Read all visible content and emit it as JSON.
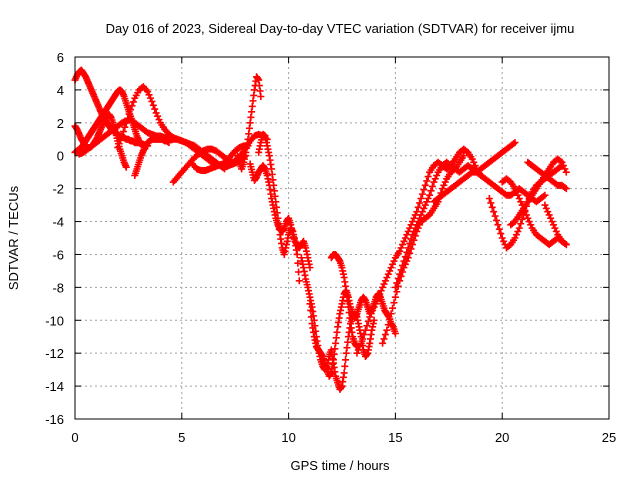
{
  "chart_data": {
    "type": "scatter",
    "title": "Day 016 of 2023, Sidereal Day-to-day VTEC variation (SDTVAR) for receiver ijmu",
    "xlabel": "GPS time / hours",
    "ylabel": "SDTVAR / TECUs",
    "xlim": [
      0,
      25
    ],
    "ylim": [
      -16,
      6
    ],
    "x_ticks": [
      "0",
      "5",
      "10",
      "15",
      "20",
      "25"
    ],
    "y_ticks": [
      "-16",
      "-14",
      "-12",
      "-10",
      "-8",
      "-6",
      "-4",
      "-2",
      "0",
      "2",
      "4",
      "6"
    ],
    "grid": true,
    "marker": "plus",
    "marker_color": "#ff0000",
    "series": [
      {
        "x": [
          0.0,
          0.1,
          0.2,
          0.3,
          0.4,
          0.5,
          0.6,
          0.7,
          0.8,
          0.9,
          1.0,
          1.1,
          1.2,
          1.3,
          1.4,
          1.5,
          1.6,
          1.7,
          1.8,
          1.9,
          2.0,
          2.1,
          2.2,
          2.3,
          2.4,
          2.5,
          2.6,
          2.7,
          2.8,
          2.9,
          3.0,
          3.1,
          3.2,
          3.3,
          3.4
        ],
        "y": [
          4.6,
          4.9,
          5.1,
          5.2,
          5.0,
          4.8,
          4.5,
          4.2,
          3.9,
          3.6,
          3.3,
          3.0,
          2.7,
          2.4,
          2.2,
          2.0,
          1.8,
          1.6,
          1.5,
          1.4,
          1.3,
          1.2,
          1.1,
          1.1,
          1.0,
          1.0,
          0.9,
          0.9,
          0.8,
          0.8,
          0.8,
          0.7,
          0.7,
          0.6,
          0.6
        ]
      },
      {
        "x": [
          0.0,
          0.1,
          0.2,
          0.3,
          0.4,
          0.5,
          0.6,
          0.7,
          0.8,
          0.9,
          1.0,
          1.1,
          1.2,
          1.3,
          1.4,
          1.5,
          1.6,
          1.7,
          1.8,
          1.9,
          2.0,
          2.1,
          2.2,
          2.3,
          2.4,
          2.5,
          2.6,
          2.7,
          2.8,
          2.9,
          3.0
        ],
        "y": [
          0.2,
          0.3,
          0.4,
          0.5,
          0.7,
          0.9,
          1.1,
          1.3,
          1.5,
          1.7,
          1.9,
          2.1,
          2.3,
          2.5,
          2.7,
          2.9,
          3.1,
          3.3,
          3.5,
          3.7,
          3.9,
          4.0,
          3.9,
          3.6,
          3.2,
          2.8,
          2.4,
          2.0,
          1.6,
          1.2,
          0.9
        ]
      },
      {
        "x": [
          0.0,
          0.1,
          0.2,
          0.3,
          0.4,
          0.5,
          0.6,
          0.7,
          0.8,
          0.9,
          1.0,
          1.1,
          1.2,
          1.3,
          1.4,
          1.5,
          1.6,
          1.7,
          1.8,
          1.9,
          2.0,
          2.1,
          2.2,
          2.3,
          2.4
        ],
        "y": [
          1.8,
          1.6,
          1.3,
          1.0,
          0.8,
          0.6,
          0.5,
          0.5,
          0.6,
          0.8,
          1.0,
          1.3,
          1.6,
          1.9,
          2.2,
          2.4,
          2.5,
          2.3,
          1.9,
          1.4,
          0.9,
          0.4,
          0.0,
          -0.4,
          -0.7
        ]
      },
      {
        "x": [
          0.2,
          0.4,
          0.6,
          0.8,
          1.0,
          1.2,
          1.4,
          1.6,
          1.8,
          2.0,
          2.2,
          2.4,
          2.6,
          2.8,
          3.0,
          3.2,
          3.4,
          3.6,
          3.8,
          4.0,
          4.2,
          4.4,
          4.6,
          4.8,
          5.0,
          5.2,
          5.4,
          5.6,
          5.8,
          6.0,
          6.2,
          6.4,
          6.6,
          6.8,
          7.0,
          7.2,
          7.4,
          7.6,
          7.8,
          8.0
        ],
        "y": [
          0.1,
          0.2,
          0.4,
          0.6,
          0.8,
          1.0,
          1.2,
          1.4,
          1.6,
          1.8,
          2.0,
          2.1,
          2.2,
          2.0,
          1.8,
          1.6,
          1.4,
          1.3,
          1.2,
          1.2,
          1.1,
          1.1,
          1.0,
          1.0,
          0.9,
          0.8,
          0.6,
          0.4,
          0.2,
          0.0,
          -0.2,
          -0.4,
          -0.5,
          -0.6,
          -0.7,
          -0.6,
          -0.5,
          -0.4,
          -0.2,
          0.0
        ]
      },
      {
        "x": [
          2.0,
          2.2,
          2.4,
          2.6,
          2.8,
          3.0,
          3.2,
          3.4,
          3.6,
          3.8,
          4.0,
          4.2,
          4.4,
          4.6,
          4.8,
          5.0,
          5.2,
          5.4,
          5.6,
          5.8,
          6.0,
          6.2,
          6.4,
          6.6,
          6.8,
          7.0
        ],
        "y": [
          0.5,
          1.2,
          2.0,
          2.8,
          3.5,
          4.0,
          4.2,
          3.9,
          3.3,
          2.6,
          2.0,
          1.6,
          1.3,
          1.1,
          1.0,
          0.9,
          0.8,
          0.7,
          0.6,
          0.4,
          0.2,
          0.0,
          -0.2,
          -0.4,
          -0.6,
          -0.8
        ]
      },
      {
        "x": [
          2.8,
          2.9,
          3.0,
          3.1,
          3.2,
          3.3,
          3.4,
          3.5,
          3.6,
          3.7,
          3.8,
          3.9,
          4.0,
          4.1,
          4.2,
          4.3,
          4.4
        ],
        "y": [
          -1.2,
          -0.8,
          -0.4,
          0.0,
          0.3,
          0.6,
          0.8,
          0.9,
          1.0,
          1.0,
          1.0,
          1.0,
          1.0,
          1.0,
          0.9,
          0.9,
          0.8
        ]
      },
      {
        "x": [
          4.6,
          4.8,
          5.0,
          5.2,
          5.4,
          5.6,
          5.8,
          6.0,
          6.2,
          6.4,
          6.6,
          6.8,
          7.0,
          7.2,
          7.4,
          7.6,
          7.8,
          8.0,
          8.2,
          8.4,
          8.6,
          8.8,
          9.0
        ],
        "y": [
          -1.6,
          -1.3,
          -1.0,
          -0.7,
          -0.4,
          -0.1,
          0.1,
          0.3,
          0.4,
          0.4,
          0.3,
          0.1,
          -0.1,
          -0.3,
          -0.4,
          -0.2,
          0.1,
          0.5,
          0.9,
          1.2,
          1.3,
          1.2,
          1.0
        ]
      },
      {
        "x": [
          5.5,
          5.7,
          5.9,
          6.1,
          6.3,
          6.5,
          6.7,
          6.9,
          7.1,
          7.3,
          7.5,
          7.7,
          7.9,
          8.1
        ],
        "y": [
          -0.5,
          -0.8,
          -0.9,
          -0.9,
          -0.8,
          -0.7,
          -0.6,
          -0.5,
          -0.3,
          0.0,
          0.3,
          0.5,
          0.6,
          0.6
        ]
      },
      {
        "x": [
          7.6,
          7.7,
          7.8,
          7.9,
          8.0,
          8.1,
          8.2,
          8.3,
          8.4,
          8.5,
          8.6,
          8.7
        ],
        "y": [
          0.0,
          -0.4,
          -0.8,
          -0.4,
          0.2,
          1.0,
          2.0,
          3.0,
          4.0,
          4.8,
          4.6,
          3.6
        ]
      },
      {
        "x": [
          8.2,
          8.3,
          8.4,
          8.5,
          8.6,
          8.7,
          8.8,
          8.9,
          9.0,
          9.1,
          9.2,
          9.3,
          9.4,
          9.5,
          9.6,
          9.7,
          9.8,
          9.9,
          10.0,
          10.1,
          10.2,
          10.3,
          10.4,
          10.5,
          10.6,
          10.7,
          10.8,
          10.9,
          11.0
        ],
        "y": [
          -0.5,
          -1.0,
          -1.5,
          -1.3,
          -1.0,
          -0.8,
          -0.6,
          -0.8,
          -1.2,
          -1.8,
          -2.6,
          -3.2,
          -3.8,
          -4.2,
          -4.5,
          -4.6,
          -4.4,
          -4.0,
          -3.8,
          -4.2,
          -4.8,
          -5.2,
          -5.4,
          -5.6,
          -5.4,
          -5.2,
          -5.6,
          -6.2,
          -6.8
        ]
      },
      {
        "x": [
          8.6,
          8.7,
          8.8,
          8.9,
          9.0,
          9.1,
          9.2,
          9.3,
          9.4,
          9.5,
          9.6,
          9.7,
          9.8,
          9.9,
          10.0,
          10.1,
          10.2,
          10.3,
          10.4,
          10.5
        ],
        "y": [
          0.2,
          0.8,
          1.3,
          1.2,
          0.6,
          0.0,
          -0.8,
          -1.8,
          -2.8,
          -3.8,
          -4.8,
          -5.6,
          -6.0,
          -5.4,
          -4.8,
          -4.4,
          -4.6,
          -5.2,
          -6.0,
          -7.6
        ]
      },
      {
        "x": [
          10.6,
          10.7,
          10.8,
          10.9,
          11.0,
          11.1,
          11.2,
          11.3,
          11.4,
          11.5,
          11.6,
          11.7,
          11.8,
          11.9,
          12.0,
          12.1,
          12.2,
          12.3,
          12.4,
          12.5,
          12.6,
          12.7,
          12.8,
          12.9,
          13.0,
          13.1,
          13.2,
          13.3,
          13.4,
          13.5,
          13.6,
          13.7,
          13.8,
          13.9,
          14.0
        ],
        "y": [
          -6.2,
          -6.8,
          -7.5,
          -8.0,
          -8.6,
          -9.2,
          -10.0,
          -11.0,
          -11.8,
          -12.4,
          -12.8,
          -13.0,
          -12.8,
          -12.2,
          -11.8,
          -12.6,
          -13.4,
          -13.8,
          -14.2,
          -14.0,
          -13.2,
          -12.0,
          -11.0,
          -10.2,
          -9.8,
          -9.6,
          -9.8,
          -10.4,
          -11.0,
          -11.8,
          -12.2,
          -12.0,
          -11.4,
          -10.6,
          -10.0
        ]
      },
      {
        "x": [
          11.0,
          11.1,
          11.2,
          11.3,
          11.4,
          11.5,
          11.6,
          11.7,
          11.8,
          11.9,
          12.0,
          12.1,
          12.2,
          12.3,
          12.4,
          12.5,
          12.6,
          12.7,
          12.8,
          12.9,
          13.0,
          13.1,
          13.2,
          13.3,
          13.4,
          13.5,
          13.6,
          13.7,
          13.8,
          13.9,
          14.0,
          14.1,
          14.2,
          14.3,
          14.4,
          14.5,
          14.6,
          14.7,
          14.8,
          14.9,
          15.0
        ],
        "y": [
          -9.0,
          -10.2,
          -11.0,
          -11.6,
          -11.8,
          -12.0,
          -12.2,
          -12.6,
          -13.0,
          -13.4,
          -13.2,
          -12.4,
          -11.4,
          -10.4,
          -9.6,
          -9.0,
          -8.4,
          -8.2,
          -8.6,
          -9.2,
          -9.6,
          -9.8,
          -9.6,
          -9.2,
          -8.8,
          -8.6,
          -8.8,
          -9.2,
          -9.6,
          -9.4,
          -9.0,
          -8.6,
          -8.4,
          -8.6,
          -9.0,
          -9.4,
          -9.6,
          -9.8,
          -10.2,
          -10.4,
          -10.8
        ]
      },
      {
        "x": [
          12.0,
          12.1,
          12.2,
          12.3,
          12.4,
          12.5,
          12.6,
          12.7,
          12.8,
          12.9,
          13.0,
          13.1,
          13.2
        ],
        "y": [
          -6.2,
          -6.0,
          -6.0,
          -6.2,
          -6.4,
          -6.8,
          -7.4,
          -8.2,
          -9.2,
          -10.2,
          -11.0,
          -11.4,
          -11.6
        ]
      },
      {
        "x": [
          13.2,
          13.4,
          13.6,
          13.8,
          14.0,
          14.2,
          14.4,
          14.6,
          14.8,
          15.0,
          15.2,
          15.4,
          15.6,
          15.8,
          16.0,
          16.2,
          16.4,
          16.6,
          16.8,
          17.0,
          17.2,
          17.4,
          17.6,
          17.8,
          18.0,
          18.2,
          18.4,
          18.6,
          18.8,
          19.0
        ],
        "y": [
          -12.0,
          -11.4,
          -10.6,
          -9.8,
          -9.2,
          -8.6,
          -8.0,
          -7.4,
          -6.8,
          -6.2,
          -5.8,
          -5.2,
          -4.6,
          -4.0,
          -3.4,
          -2.6,
          -1.8,
          -1.0,
          -0.6,
          -0.4,
          -0.6,
          -0.8,
          -0.6,
          -0.2,
          0.2,
          0.4,
          0.2,
          -0.2,
          -0.8,
          -1.2
        ]
      },
      {
        "x": [
          14.4,
          14.6,
          14.8,
          15.0,
          15.2,
          15.4,
          15.6,
          15.8,
          16.0,
          16.2,
          16.4,
          16.6,
          16.8,
          17.0,
          17.2,
          17.4,
          17.6,
          17.8,
          18.0,
          18.2
        ],
        "y": [
          -11.4,
          -10.6,
          -9.6,
          -8.6,
          -7.6,
          -6.8,
          -6.2,
          -5.4,
          -4.6,
          -4.0,
          -3.8,
          -3.6,
          -3.2,
          -2.8,
          -2.0,
          -1.4,
          -1.0,
          -0.8,
          -0.4,
          0.0
        ]
      },
      {
        "x": [
          15.0,
          15.2,
          15.4,
          15.6,
          15.8,
          16.0,
          16.2,
          16.4,
          16.6,
          16.8,
          17.0,
          17.2,
          17.4,
          17.6,
          17.8,
          18.0,
          18.2,
          18.4,
          18.6,
          18.8,
          19.0,
          19.2,
          19.4,
          19.6,
          19.8,
          20.0,
          20.2,
          20.4,
          20.6
        ],
        "y": [
          -8.0,
          -7.2,
          -6.4,
          -5.6,
          -4.8,
          -4.2,
          -3.6,
          -3.0,
          -2.4,
          -1.6,
          -1.0,
          -0.6,
          -0.4,
          -0.6,
          -0.8,
          -1.0,
          -0.8,
          -0.6,
          -0.8,
          -1.0,
          -0.8,
          -0.6,
          -0.4,
          -0.2,
          0.0,
          0.2,
          0.4,
          0.6,
          0.8
        ]
      },
      {
        "x": [
          16.8,
          17.0,
          17.2,
          17.4,
          17.6,
          17.8,
          18.0,
          18.2,
          18.4,
          18.6,
          18.8,
          19.0,
          19.2,
          19.4,
          19.6,
          19.8,
          20.0,
          20.2,
          20.4,
          20.6,
          20.8,
          21.0,
          21.2,
          21.4,
          21.6,
          21.8,
          22.0
        ],
        "y": [
          -2.8,
          -2.6,
          -2.4,
          -2.2,
          -2.0,
          -1.8,
          -1.6,
          -1.4,
          -1.2,
          -1.0,
          -1.0,
          -1.2,
          -1.4,
          -1.6,
          -1.8,
          -2.0,
          -2.2,
          -2.4,
          -2.4,
          -2.2,
          -2.0,
          -2.2,
          -2.4,
          -2.6,
          -2.8,
          -2.6,
          -2.4
        ]
      },
      {
        "x": [
          19.4,
          19.6,
          19.8,
          20.0,
          20.2,
          20.4,
          20.6,
          20.8,
          21.0,
          21.2,
          21.4,
          21.6,
          21.8,
          22.0,
          22.2,
          22.4,
          22.6,
          22.8
        ],
        "y": [
          -2.6,
          -3.4,
          -4.2,
          -5.0,
          -5.6,
          -5.4,
          -5.0,
          -4.4,
          -3.6,
          -2.8,
          -2.2,
          -1.8,
          -1.6,
          -1.4,
          -1.2,
          -1.0,
          -0.8,
          -0.6
        ]
      },
      {
        "x": [
          20.0,
          20.2,
          20.4,
          20.6,
          20.8,
          21.0,
          21.2,
          21.4,
          21.6,
          21.8,
          22.0,
          22.2,
          22.4,
          22.6,
          22.8,
          23.0
        ],
        "y": [
          -1.6,
          -1.4,
          -1.6,
          -2.0,
          -2.6,
          -3.2,
          -3.8,
          -4.4,
          -4.8,
          -5.0,
          -5.2,
          -5.4,
          -5.2,
          -5.0,
          -5.2,
          -5.4
        ]
      },
      {
        "x": [
          20.4,
          20.6,
          20.8,
          21.0,
          21.2,
          21.4,
          21.6,
          21.8,
          22.0,
          22.2,
          22.4,
          22.6,
          22.8,
          23.0
        ],
        "y": [
          -4.2,
          -4.0,
          -3.6,
          -3.2,
          -2.8,
          -2.4,
          -2.0,
          -1.6,
          -1.2,
          -0.8,
          -0.4,
          -0.2,
          -0.4,
          -1.0
        ]
      },
      {
        "x": [
          21.2,
          21.4,
          21.6,
          21.8,
          22.0,
          22.2,
          22.4,
          22.6,
          22.8,
          23.0
        ],
        "y": [
          -0.4,
          -0.6,
          -0.8,
          -1.0,
          -1.2,
          -1.4,
          -1.6,
          -1.8,
          -1.8,
          -2.0
        ]
      },
      {
        "x": [
          22.0,
          22.2,
          22.4,
          22.6,
          22.8,
          23.0
        ],
        "y": [
          -3.0,
          -3.6,
          -4.2,
          -4.8,
          -5.2,
          -5.4
        ]
      }
    ]
  }
}
